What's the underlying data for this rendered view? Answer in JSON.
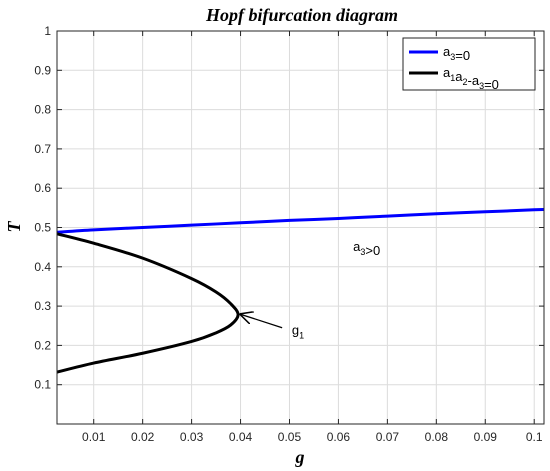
{
  "chart_data": {
    "type": "line",
    "title": "Hopf bifurcation diagram",
    "xlabel": "g",
    "ylabel": "T",
    "xlim": [
      0.0025,
      0.102
    ],
    "ylim": [
      0,
      1.0
    ],
    "xticks": [
      0.01,
      0.02,
      0.03,
      0.04,
      0.05,
      0.06,
      0.07,
      0.08,
      0.09,
      0.1
    ],
    "yticks": [
      0.1,
      0.2,
      0.3,
      0.4,
      0.5,
      0.6,
      0.7,
      0.8,
      0.9,
      1
    ],
    "grid": true,
    "legend_position": "top-right",
    "series": [
      {
        "name": "a_3=0",
        "legend_base": "a",
        "legend_parts": [
          [
            "a",
            "3"
          ],
          [
            "=0",
            ""
          ]
        ],
        "color": "#0000ff",
        "x": [
          0.0025,
          0.01,
          0.02,
          0.03,
          0.04,
          0.05,
          0.06,
          0.07,
          0.08,
          0.09,
          0.1,
          0.102
        ],
        "y": [
          0.488,
          0.494,
          0.5,
          0.506,
          0.512,
          0.518,
          0.523,
          0.529,
          0.535,
          0.54,
          0.545,
          0.546
        ]
      },
      {
        "name": "a_1a_2-a_3=0",
        "legend_parts": [
          [
            "a",
            "1"
          ],
          [
            "a",
            "2"
          ],
          [
            "-a",
            "3"
          ],
          [
            "=0",
            ""
          ]
        ],
        "color": "#000000",
        "x": [
          0.0025,
          0.01,
          0.02,
          0.03,
          0.035,
          0.038,
          0.0395,
          0.038,
          0.035,
          0.03,
          0.02,
          0.01,
          0.0025
        ],
        "y": [
          0.484,
          0.46,
          0.422,
          0.37,
          0.336,
          0.306,
          0.278,
          0.252,
          0.232,
          0.21,
          0.18,
          0.155,
          0.132
        ]
      }
    ],
    "annotations": [
      {
        "id": "region",
        "parts": [
          [
            "a",
            "3"
          ],
          [
            ">0",
            ""
          ]
        ],
        "x": 0.063,
        "y": 0.44
      },
      {
        "id": "g1",
        "parts": [
          [
            "g",
            "1"
          ]
        ],
        "x": 0.0505,
        "y": 0.228,
        "arrow_from": [
          0.0485,
          0.245
        ],
        "arrow_to": [
          0.0398,
          0.28
        ]
      }
    ]
  }
}
